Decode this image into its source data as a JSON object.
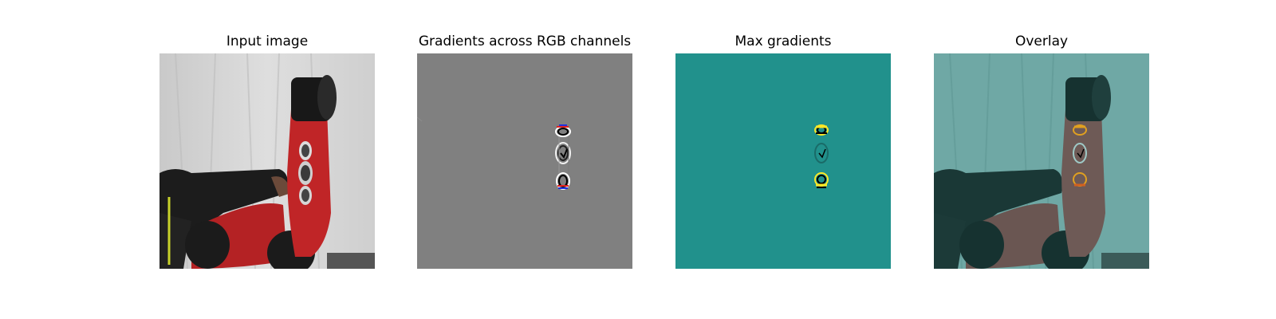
{
  "panels": [
    {
      "title": "Input image"
    },
    {
      "title": "Gradients across RGB channels"
    },
    {
      "title": "Max gradients"
    },
    {
      "title": "Overlay"
    }
  ],
  "colors": {
    "background": "#ffffff",
    "gradient_gray": "#808080",
    "max_teal": "#21918c",
    "robot_red": "#c8282a",
    "cloth": "#d9d9d9"
  }
}
